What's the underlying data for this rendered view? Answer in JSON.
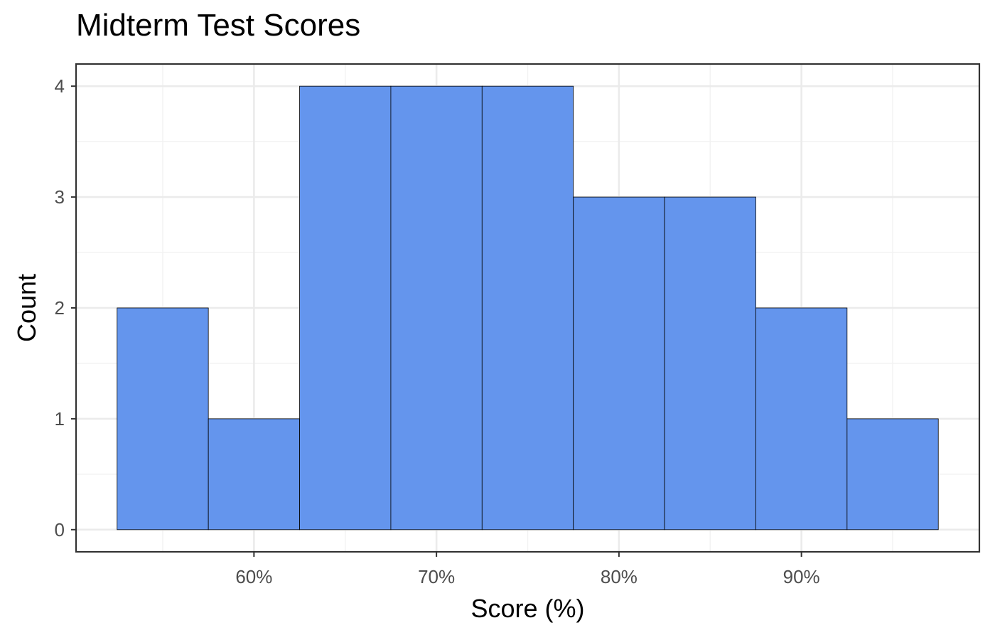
{
  "chart_data": {
    "type": "bar",
    "title": "Midterm Test Scores",
    "xlabel": "Score (%)",
    "ylabel": "Count",
    "bin_width": 5,
    "bins": [
      {
        "start": 52.5,
        "end": 57.5,
        "count": 2
      },
      {
        "start": 57.5,
        "end": 62.5,
        "count": 1
      },
      {
        "start": 62.5,
        "end": 67.5,
        "count": 4
      },
      {
        "start": 67.5,
        "end": 72.5,
        "count": 4
      },
      {
        "start": 72.5,
        "end": 77.5,
        "count": 4
      },
      {
        "start": 77.5,
        "end": 82.5,
        "count": 3
      },
      {
        "start": 82.5,
        "end": 87.5,
        "count": 3
      },
      {
        "start": 87.5,
        "end": 92.5,
        "count": 2
      },
      {
        "start": 92.5,
        "end": 97.5,
        "count": 1
      }
    ],
    "xlim": [
      50.25,
      99.75
    ],
    "ylim": [
      -0.2,
      4.2
    ],
    "x_ticks": [
      {
        "value": 60,
        "label": "60%"
      },
      {
        "value": 70,
        "label": "70%"
      },
      {
        "value": 80,
        "label": "80%"
      },
      {
        "value": 90,
        "label": "90%"
      }
    ],
    "x_minor_ticks": [
      55,
      65,
      75,
      85,
      95
    ],
    "y_ticks": [
      {
        "value": 0,
        "label": "0"
      },
      {
        "value": 1,
        "label": "1"
      },
      {
        "value": 2,
        "label": "2"
      },
      {
        "value": 3,
        "label": "3"
      },
      {
        "value": 4,
        "label": "4"
      }
    ],
    "y_minor_ticks": [
      0.5,
      1.5,
      2.5,
      3.5
    ],
    "grid": true,
    "legend": "none",
    "colors": {
      "bar_fill": "#6495ED",
      "bar_stroke": "#000000",
      "grid_major": "#ebebeb",
      "grid_minor": "#f2f2f2",
      "panel_border": "#333333",
      "tick_label": "#4d4d4d"
    }
  }
}
